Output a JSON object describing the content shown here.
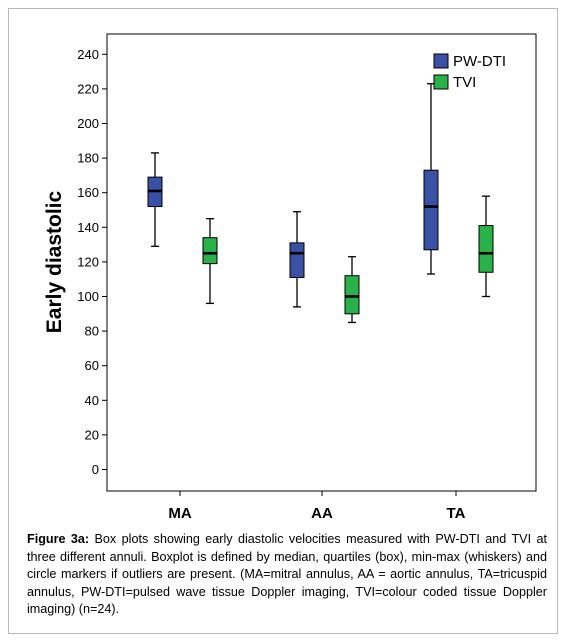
{
  "chart_data": {
    "type": "box",
    "ylabel": "Early diastolic",
    "xlabel": "",
    "ylim": [
      0,
      250
    ],
    "yticks": [
      0,
      20,
      40,
      60,
      80,
      100,
      120,
      140,
      160,
      180,
      200,
      220,
      240
    ],
    "grid": false,
    "legend_position": "top-right",
    "categories": [
      "MA",
      "AA",
      "TA"
    ],
    "series": [
      {
        "name": "PW-DTI",
        "color": "#3a50a4",
        "boxes": [
          {
            "min": 129,
            "q1": 152,
            "median": 161,
            "q3": 169,
            "max": 183
          },
          {
            "min": 94,
            "q1": 111,
            "median": 125,
            "q3": 131,
            "max": 149
          },
          {
            "min": 113,
            "q1": 127,
            "median": 152,
            "q3": 173,
            "max": 223
          }
        ]
      },
      {
        "name": "TVI",
        "color": "#2ab24a",
        "boxes": [
          {
            "min": 96,
            "q1": 119,
            "median": 125,
            "q3": 134,
            "max": 145
          },
          {
            "min": 85,
            "q1": 90,
            "median": 100,
            "q3": 112,
            "max": 123
          },
          {
            "min": 100,
            "q1": 114,
            "median": 125,
            "q3": 141,
            "max": 158
          }
        ]
      }
    ]
  },
  "caption": {
    "label": "Figure 3a:",
    "text": " Box plots showing early diastolic velocities measured with PW-DTI and TVI at three different annuli. Boxplot is defined by median, quartiles (box), min-max (whiskers) and circle markers if outliers are present. (MA=mitral annulus, AA = aortic annulus, TA=tricuspid annulus, PW-DTI=pulsed wave tissue Doppler imaging, TVI=colour coded tissue Doppler imaging) (n=24)."
  }
}
